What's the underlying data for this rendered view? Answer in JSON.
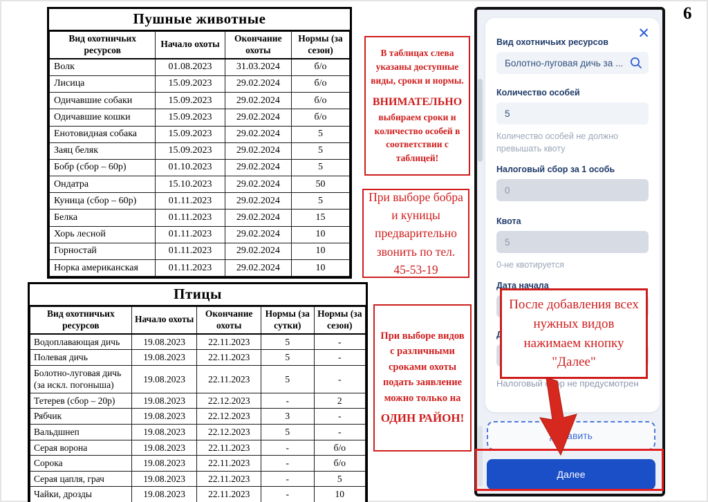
{
  "page": {
    "number": "6"
  },
  "fur_table": {
    "title": "Пушные животные",
    "headers": [
      "Вид охотничьих ресурсов",
      "Начало охоты",
      "Окончание охоты",
      "Нормы (за сезон)"
    ],
    "rows": [
      [
        "Волк",
        "01.08.2023",
        "31.03.2024",
        "б/о"
      ],
      [
        "Лисица",
        "15.09.2023",
        "29.02.2024",
        "б/о"
      ],
      [
        "Одичавшие собаки",
        "15.09.2023",
        "29.02.2024",
        "б/о"
      ],
      [
        "Одичавшие кошки",
        "15.09.2023",
        "29.02.2024",
        "б/о"
      ],
      [
        "Енотовидная собака",
        "15.09.2023",
        "29.02.2024",
        "5"
      ],
      [
        "Заяц беляк",
        "15.09.2023",
        "29.02.2024",
        "5"
      ],
      [
        "Бобр (сбор – 60р)",
        "01.10.2023",
        "29.02.2024",
        "5"
      ],
      [
        "Ондатра",
        "15.10.2023",
        "29.02.2024",
        "50"
      ],
      [
        "Куница (сбор – 60р)",
        "01.11.2023",
        "29.02.2024",
        "5"
      ],
      [
        "Белка",
        "01.11.2023",
        "29.02.2024",
        "15"
      ],
      [
        "Хорь лесной",
        "01.11.2023",
        "29.02.2024",
        "10"
      ],
      [
        "Горностай",
        "01.11.2023",
        "29.02.2024",
        "10"
      ],
      [
        "Норка американская",
        "01.11.2023",
        "29.02.2024",
        "10"
      ]
    ]
  },
  "birds_table": {
    "title": "Птицы",
    "headers": [
      "Вид охотничьих ресурсов",
      "Начало охоты",
      "Окончание охоты",
      "Нормы (за сутки)",
      "Нормы (за сезон)"
    ],
    "rows": [
      [
        "Водоплавающая дичь",
        "19.08.2023",
        "22.11.2023",
        "5",
        "-"
      ],
      [
        "Полевая дичь",
        "19.08.2023",
        "22.11.2023",
        "5",
        "-"
      ],
      [
        "Болотно-луговая дичь (за искл. погоныша)",
        "19.08.2023",
        "22.11.2023",
        "5",
        "-"
      ],
      [
        "Тетерев (сбор – 20р)",
        "19.08.2023",
        "22.12.2023",
        "-",
        "2"
      ],
      [
        "Рябчик",
        "19.08.2023",
        "22.12.2023",
        "3",
        "-"
      ],
      [
        "Вальдшнеп",
        "19.08.2023",
        "22.12.2023",
        "5",
        "-"
      ],
      [
        "Серая ворона",
        "19.08.2023",
        "22.11.2023",
        "-",
        "б/о"
      ],
      [
        "Сорока",
        "19.08.2023",
        "22.11.2023",
        "-",
        "б/о"
      ],
      [
        "Серая цапля, грач",
        "19.08.2023",
        "22.11.2023",
        "-",
        "5"
      ],
      [
        "Чайки, дрозды",
        "19.08.2023",
        "22.11.2023",
        "-",
        "10"
      ]
    ]
  },
  "notes": {
    "tables_info_1": "В таблицах слева указаны доступные виды, сроки и нормы.",
    "tables_info_2": "ВНИМАТЕЛЬНО",
    "tables_info_3": "выбираем сроки и количество особей в соответствии с таблицей!",
    "call_note": "При выборе бобра и куницы предварительно звонить по тел. 45-53-19",
    "district_note_1": "При выборе видов с различными сроками охоты подать заявление можно только на",
    "district_note_2": "ОДИН РАЙОН!",
    "next_note": "После добавления всех нужных видов нажимаем кнопку \"Далее\""
  },
  "form": {
    "resource_type": {
      "label": "Вид охотничьих ресурсов",
      "value": "Болотно-луговая дичь за ..."
    },
    "count": {
      "label": "Количество особей",
      "value": "5",
      "hint": "Количество особей не должно превышать квоту"
    },
    "tax": {
      "label": "Налоговый сбор за 1 особь",
      "value": "0"
    },
    "quota": {
      "label": "Квота",
      "value": "5",
      "hint": "0-не квотируется"
    },
    "date_start": {
      "label": "Дата начала",
      "value": ""
    },
    "date_end": {
      "label": "Дата окончания",
      "value": ""
    },
    "tax_hint": "Налоговый сбор не предусмотрен",
    "add_button": "Добавить",
    "next_button": "Далее"
  },
  "icons": {
    "close": "✕"
  },
  "colors": {
    "accent_red": "#cf1d1d",
    "button_blue": "#1b4fc8"
  }
}
